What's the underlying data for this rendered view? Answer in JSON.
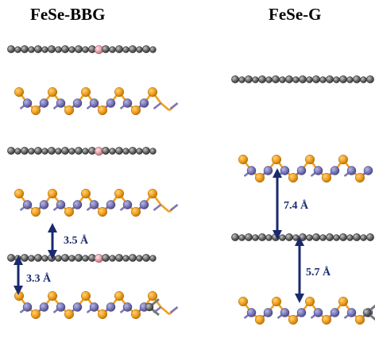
{
  "panels": {
    "left": {
      "title": "FeSe-BBG",
      "distances": [
        "3.5 Å",
        "3.3 Å"
      ]
    },
    "right": {
      "title": "FeSe-G",
      "distances": [
        "7.4 Å",
        "5.7 Å"
      ]
    }
  },
  "colors": {
    "carbon": "#707070",
    "boron": "#e8a0a8",
    "selenium": "#f0a020",
    "iron": "#7a78b8",
    "arrow": "#1a2a6e"
  }
}
